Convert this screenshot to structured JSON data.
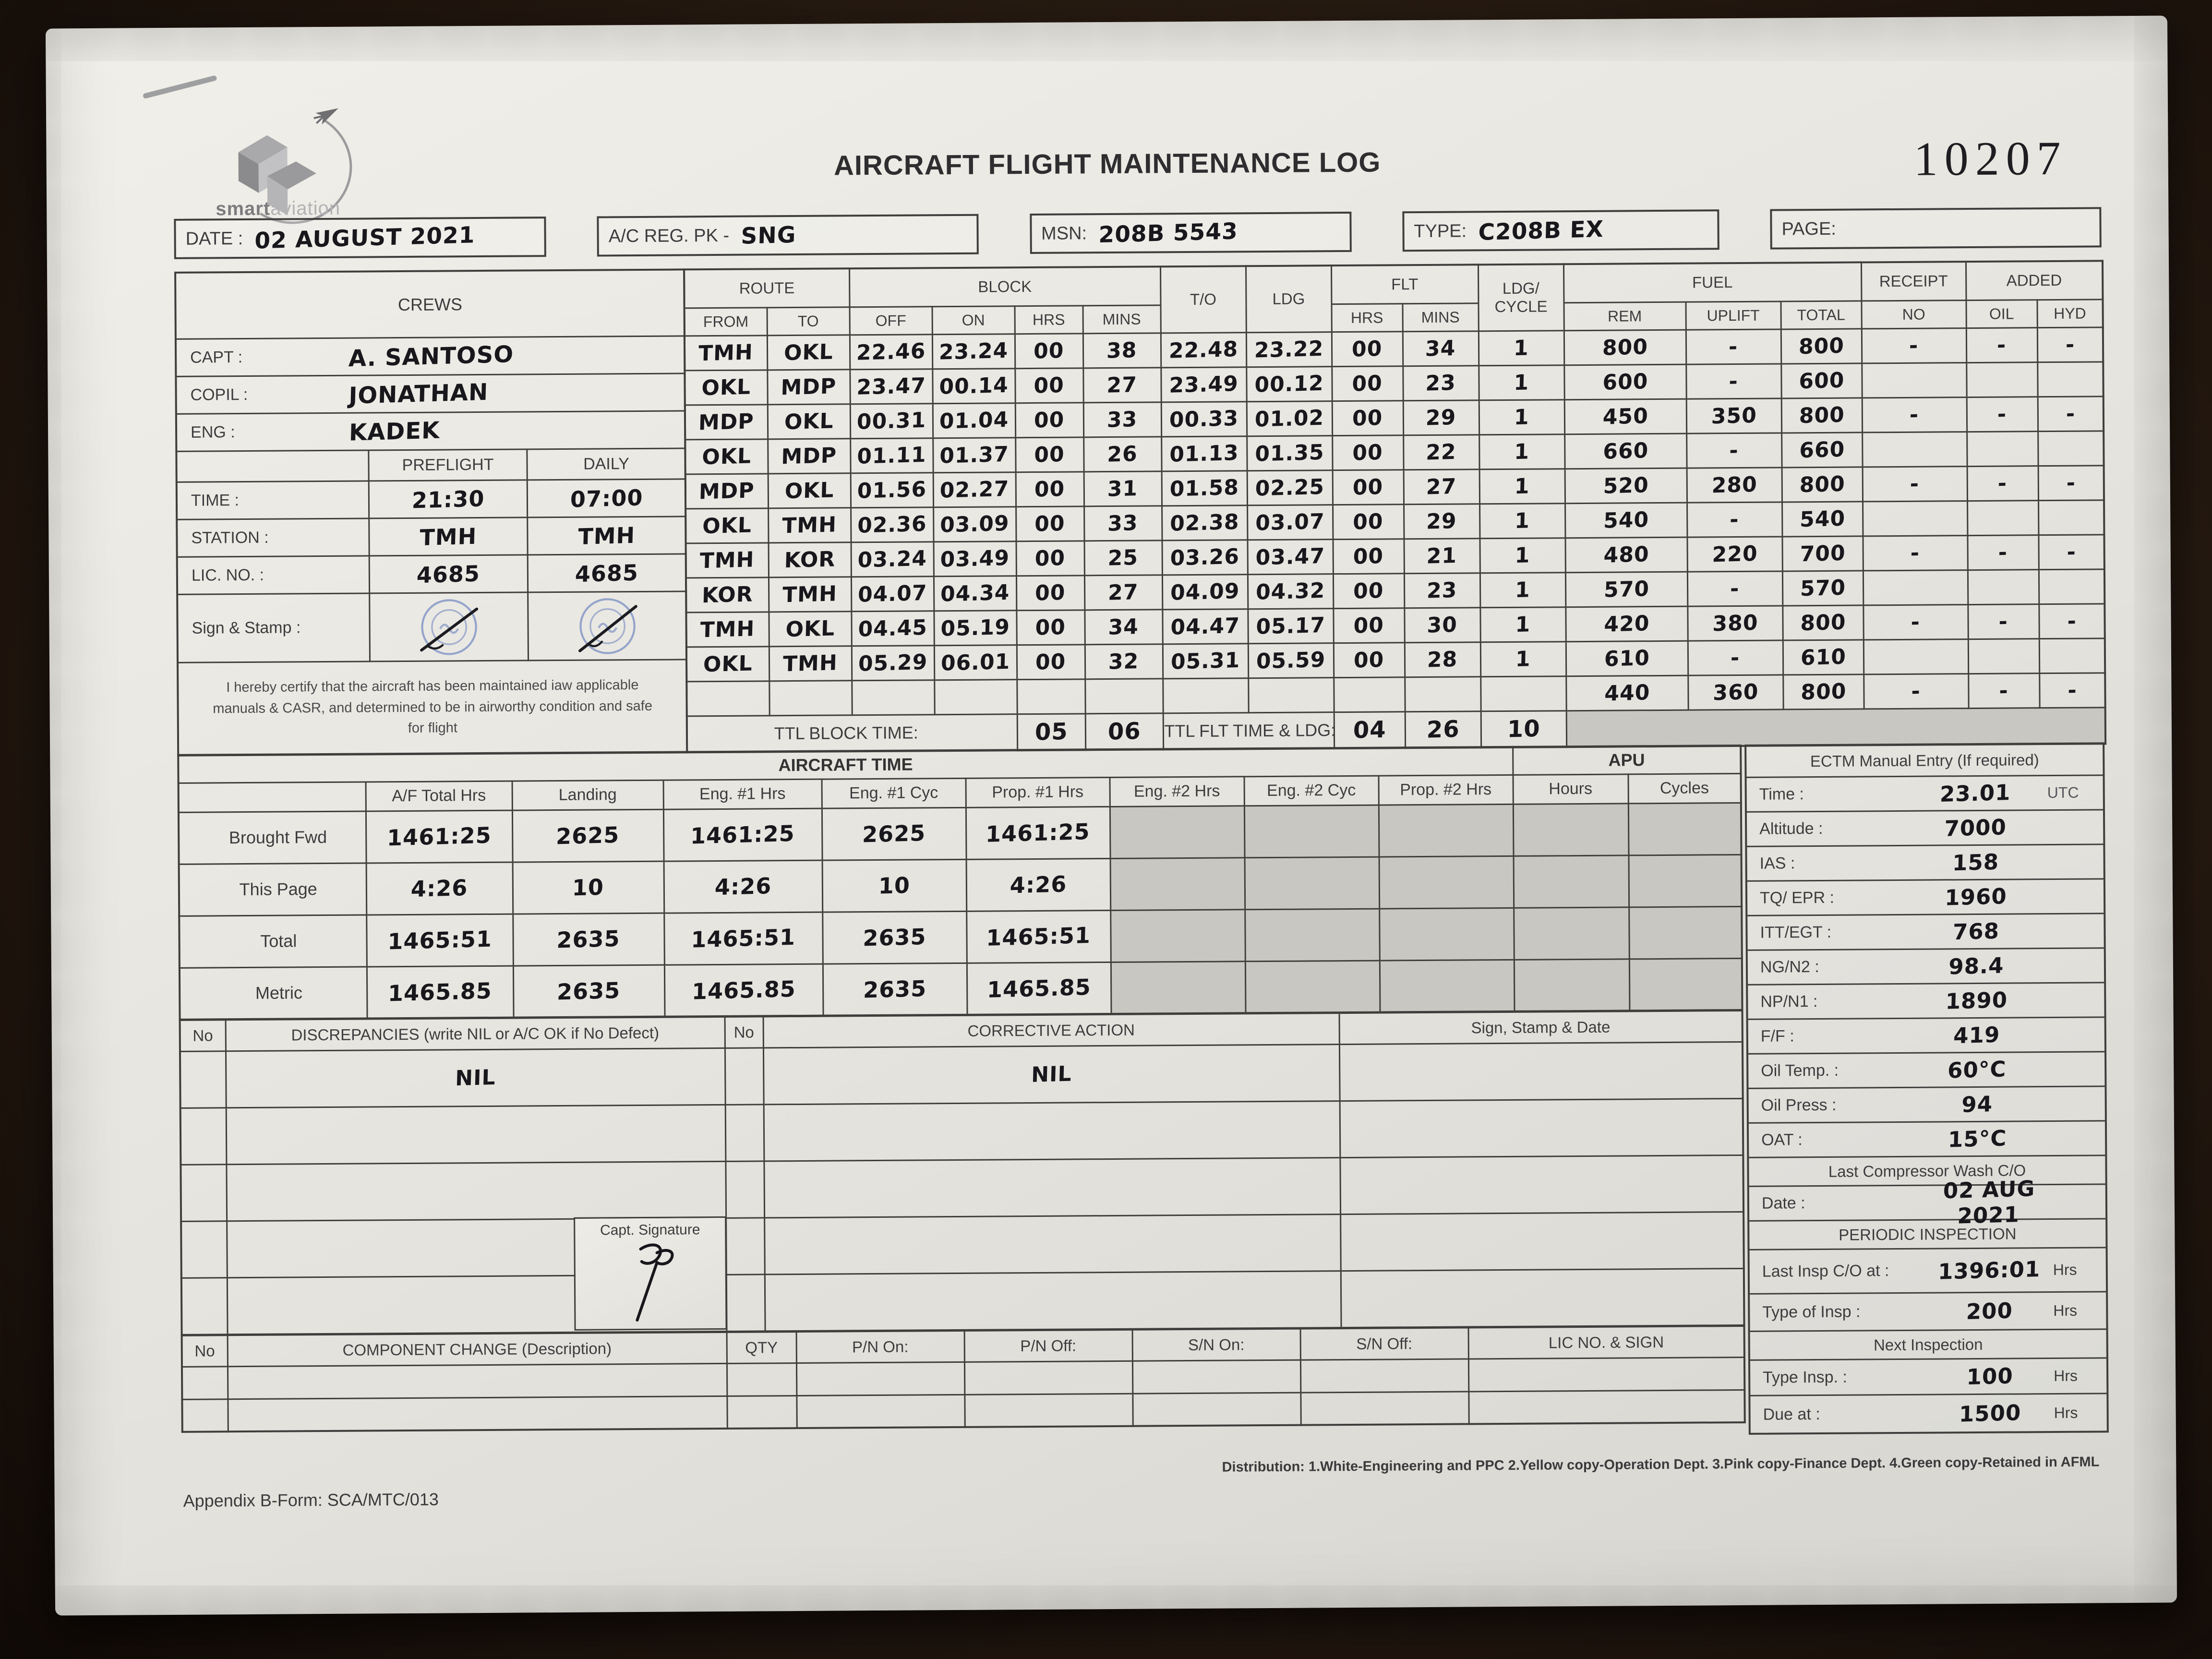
{
  "meta": {
    "title": "AIRCRAFT FLIGHT MAINTENANCE LOG",
    "form_number": "10207",
    "brand_bold": "smart",
    "brand_light": "aviation",
    "distribution": "Distribution: 1.White-Engineering and PPC  2.Yellow copy-Operation Dept.  3.Pink copy-Finance Dept.  4.Green copy-Retained in AFML",
    "appendix": "Appendix B-Form: SCA/MTC/013"
  },
  "header_fields": [
    {
      "label": "DATE :",
      "value": "02 AUGUST 2021"
    },
    {
      "label": "A/C REG. PK -",
      "value": "SNG"
    },
    {
      "label": "MSN:",
      "value": "208B 5543"
    },
    {
      "label": "TYPE:",
      "value": "C208B EX"
    },
    {
      "label": "PAGE:",
      "value": ""
    }
  ],
  "crews": {
    "section_title": "CREWS",
    "members": [
      {
        "label": "CAPT :",
        "name": "A. SANTOSO"
      },
      {
        "label": "COPIL :",
        "name": "JONATHAN"
      },
      {
        "label": "ENG :",
        "name": "KADEK"
      }
    ],
    "preflight_header": "PREFLIGHT",
    "daily_header": "DAILY",
    "time_label": "TIME :",
    "time_preflight": "21:30",
    "time_daily": "07:00",
    "station_label": "STATION :",
    "station_preflight": "TMH",
    "station_daily": "TMH",
    "lic_label": "LIC. NO. :",
    "lic_preflight": "4685",
    "lic_daily": "4685",
    "sign_label": "Sign & Stamp :",
    "certify": "I hereby certify that the aircraft has been maintained iaw applicable manuals & CASR, and determined to be in airworthy condition and safe for flight"
  },
  "flight_table": {
    "group_headers": {
      "route": "ROUTE",
      "block": "BLOCK",
      "to": "T/O",
      "ldg": "LDG",
      "flt": "FLT",
      "ldg_cycle": "LDG/\nCYCLE",
      "fuel": "FUEL",
      "receipt": "RECEIPT",
      "added": "ADDED"
    },
    "sub_headers": {
      "from": "FROM",
      "to": "TO",
      "off": "OFF",
      "on": "ON",
      "hrs": "HRS",
      "mins": "MINS",
      "flt_hrs": "HRS",
      "flt_mins": "MINS",
      "rem": "REM",
      "uplift": "UPLIFT",
      "total": "TOTAL",
      "no": "NO",
      "oil": "OIL",
      "hyd": "HYD"
    },
    "rows": [
      [
        "TMH",
        "OKL",
        "22.46",
        "23.24",
        "00",
        "38",
        "22.48",
        "23.22",
        "00",
        "34",
        "1",
        "800",
        "-",
        "800",
        "-",
        "-",
        "-"
      ],
      [
        "OKL",
        "MDP",
        "23.47",
        "00.14",
        "00",
        "27",
        "23.49",
        "00.12",
        "00",
        "23",
        "1",
        "600",
        "-",
        "600",
        "",
        "",
        ""
      ],
      [
        "MDP",
        "OKL",
        "00.31",
        "01.04",
        "00",
        "33",
        "00.33",
        "01.02",
        "00",
        "29",
        "1",
        "450",
        "350",
        "800",
        "-",
        "-",
        "-"
      ],
      [
        "OKL",
        "MDP",
        "01.11",
        "01.37",
        "00",
        "26",
        "01.13",
        "01.35",
        "00",
        "22",
        "1",
        "660",
        "-",
        "660",
        "",
        "",
        ""
      ],
      [
        "MDP",
        "OKL",
        "01.56",
        "02.27",
        "00",
        "31",
        "01.58",
        "02.25",
        "00",
        "27",
        "1",
        "520",
        "280",
        "800",
        "-",
        "-",
        "-"
      ],
      [
        "OKL",
        "TMH",
        "02.36",
        "03.09",
        "00",
        "33",
        "02.38",
        "03.07",
        "00",
        "29",
        "1",
        "540",
        "-",
        "540",
        "",
        "",
        ""
      ],
      [
        "TMH",
        "KOR",
        "03.24",
        "03.49",
        "00",
        "25",
        "03.26",
        "03.47",
        "00",
        "21",
        "1",
        "480",
        "220",
        "700",
        "-",
        "-",
        "-"
      ],
      [
        "KOR",
        "TMH",
        "04.07",
        "04.34",
        "00",
        "27",
        "04.09",
        "04.32",
        "00",
        "23",
        "1",
        "570",
        "-",
        "570",
        "",
        "",
        ""
      ],
      [
        "TMH",
        "OKL",
        "04.45",
        "05.19",
        "00",
        "34",
        "04.47",
        "05.17",
        "00",
        "30",
        "1",
        "420",
        "380",
        "800",
        "-",
        "-",
        "-"
      ],
      [
        "OKL",
        "TMH",
        "05.29",
        "06.01",
        "00",
        "32",
        "05.31",
        "05.59",
        "00",
        "28",
        "1",
        "610",
        "-",
        "610",
        "",
        "",
        ""
      ],
      [
        "",
        "",
        "",
        "",
        "",
        "",
        "",
        "",
        "",
        "",
        "",
        "440",
        "360",
        "800",
        "-",
        "-",
        "-"
      ]
    ],
    "ttl": {
      "block_label": "TTL BLOCK TIME:",
      "block_hrs": "05",
      "block_mins": "06",
      "flt_label": "TTL FLT TIME & LDG:",
      "flt_hrs": "04",
      "flt_mins": "26",
      "ldg": "10"
    }
  },
  "aircraft_time": {
    "title": "AIRCRAFT TIME",
    "apu_title": "APU",
    "col_headers": [
      "A/F Total Hrs",
      "Landing",
      "Eng. #1 Hrs",
      "Eng. #1 Cyc",
      "Prop. #1 Hrs",
      "Eng. #2 Hrs",
      "Eng. #2 Cyc",
      "Prop. #2 Hrs",
      "Hours",
      "Cycles"
    ],
    "rows": [
      {
        "label": "Brought Fwd",
        "values": [
          "1461:25",
          "2625",
          "1461:25",
          "2625",
          "1461:25",
          "",
          "",
          "",
          "",
          ""
        ]
      },
      {
        "label": "This Page",
        "values": [
          "4:26",
          "10",
          "4:26",
          "10",
          "4:26",
          "",
          "",
          "",
          "",
          ""
        ]
      },
      {
        "label": "Total",
        "values": [
          "1465:51",
          "2635",
          "1465:51",
          "2635",
          "1465:51",
          "",
          "",
          "",
          "",
          ""
        ]
      },
      {
        "label": "Metric",
        "values": [
          "1465.85",
          "2635",
          "1465.85",
          "2635",
          "1465.85",
          "",
          "",
          "",
          "",
          ""
        ]
      }
    ]
  },
  "discrepancies": {
    "no_header": "No",
    "disc_header": "DISCREPANCIES (write NIL or A/C OK if No Defect)",
    "no2_header": "No",
    "ca_header": "CORRECTIVE ACTION",
    "sign_header": "Sign, Stamp & Date",
    "capt_sig_label": "Capt. Signature",
    "rows": [
      [
        "",
        "NIL",
        "",
        "NIL",
        ""
      ],
      [
        "",
        "",
        "",
        "",
        ""
      ],
      [
        "",
        "",
        "",
        "",
        ""
      ],
      [
        "",
        "",
        "",
        "",
        ""
      ],
      [
        "",
        "",
        "",
        "",
        ""
      ]
    ]
  },
  "component_change": {
    "headers": [
      "No",
      "COMPONENT CHANGE (Description)",
      "QTY",
      "P/N On:",
      "P/N Off:",
      "S/N On:",
      "S/N Off:",
      "LIC NO. & SIGN"
    ],
    "rows": [
      [
        "",
        "",
        "",
        "",
        "",
        "",
        "",
        ""
      ],
      [
        "",
        "",
        "",
        "",
        "",
        "",
        "",
        ""
      ]
    ]
  },
  "ectm": {
    "title": "ECTM Manual Entry (If required)",
    "rows": [
      [
        "Time :",
        "23.01",
        "UTC"
      ],
      [
        "Altitude :",
        "7000",
        ""
      ],
      [
        "IAS :",
        "158",
        ""
      ],
      [
        "TQ/ EPR :",
        "1960",
        ""
      ],
      [
        "ITT/EGT :",
        "768",
        ""
      ],
      [
        "NG/N2 :",
        "98.4",
        ""
      ],
      [
        "NP/N1 :",
        "1890",
        ""
      ],
      [
        "F/F :",
        "419",
        ""
      ],
      [
        "Oil Temp. :",
        "60°C",
        ""
      ],
      [
        "Oil Press :",
        "94",
        ""
      ],
      [
        "OAT :",
        "15°C",
        ""
      ]
    ],
    "wash_label": "Last Compressor Wash C/O",
    "date_label": "Date :",
    "date_value": "02 AUG 2021",
    "periodic_title": "PERIODIC INSPECTION",
    "last_insp_label": "Last Insp C/O at :",
    "last_insp_value": "1396:01",
    "hrs_unit": "Hrs",
    "type_insp_label": "Type of Insp :",
    "type_insp_value": "200",
    "next_title": "Next Inspection",
    "next_type_label": "Type Insp. :",
    "next_type_value": "100",
    "due_label": "Due at :",
    "due_value": "1500"
  }
}
